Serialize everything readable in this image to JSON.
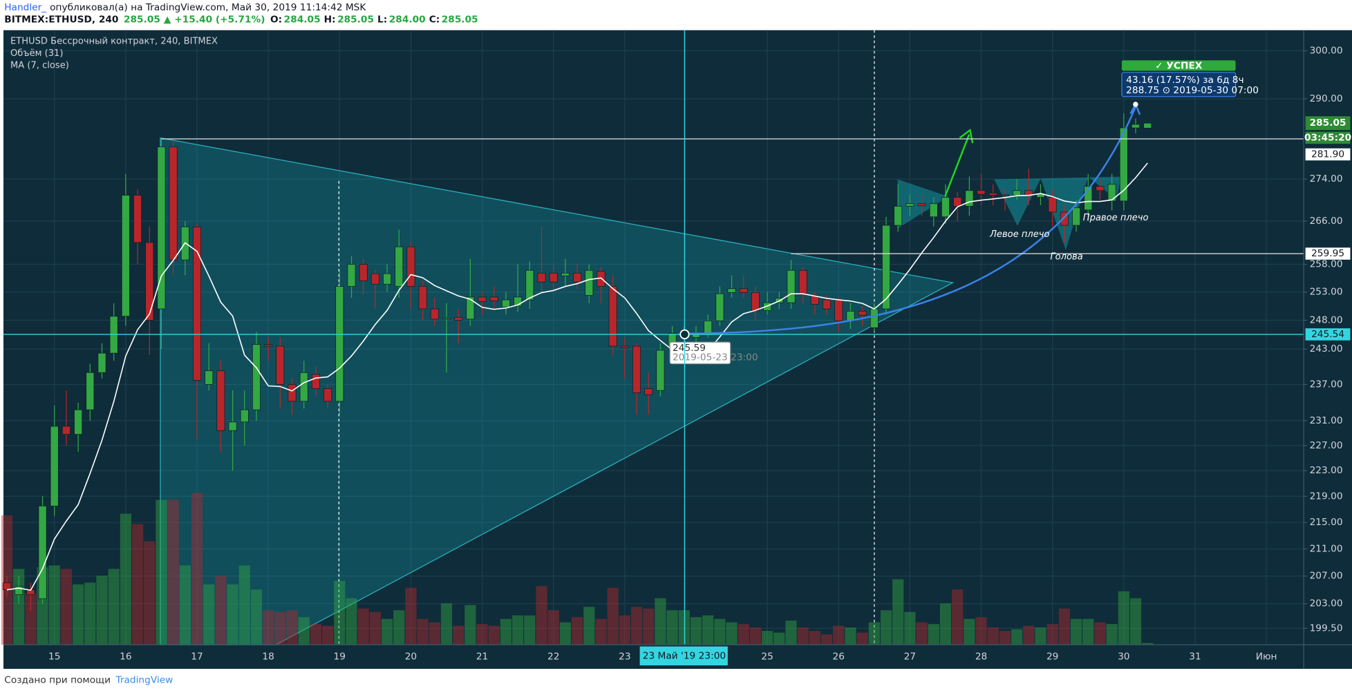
{
  "header": {
    "user": "Handler_",
    "published": "опубликовал(а) на TradingView.com, Май 30, 2019 11:14:42 MSK",
    "symbol": "BITMEX:ETHUSD, 240",
    "last": "285.05",
    "change": "▲ +15.40 (+5.71%)",
    "ohlc": [
      {
        "k": "O:",
        "v": "284.05"
      },
      {
        "k": "H:",
        "v": "285.05"
      },
      {
        "k": "L:",
        "v": "284.00"
      },
      {
        "k": "C:",
        "v": "285.05"
      }
    ]
  },
  "chart_data": {
    "type": "candlestick",
    "legend": [
      "ETHUSD Бессрочный контракт, 240, BITMEX",
      "Объём (31)",
      "MA (7, close)"
    ],
    "ma_period": 7,
    "categories": [
      null,
      null,
      null,
      null,
      "15",
      null,
      null,
      null,
      null,
      null,
      "16",
      null,
      null,
      null,
      null,
      null,
      "17",
      null,
      null,
      null,
      null,
      null,
      "18",
      null,
      null,
      null,
      null,
      null,
      "19",
      null,
      null,
      null,
      null,
      null,
      "20",
      null,
      null,
      null,
      null,
      null,
      "21",
      null,
      null,
      null,
      null,
      null,
      "22",
      null,
      null,
      null,
      null,
      null,
      "23",
      null,
      null,
      null,
      null,
      null,
      null,
      null,
      null,
      null,
      null,
      null,
      "25",
      null,
      null,
      null,
      null,
      null,
      "26",
      null,
      null,
      null,
      null,
      null,
      "27",
      null,
      null,
      null,
      null,
      null,
      "28",
      null,
      null,
      null,
      null,
      null,
      "29",
      null,
      null,
      null,
      null,
      null,
      "30",
      null,
      null,
      null,
      null,
      null,
      "31",
      null,
      null,
      null,
      null,
      null,
      "Июн"
    ],
    "open": [
      206,
      204.3,
      205,
      203.7,
      217.5,
      230.1,
      228.8,
      232.8,
      239,
      242.3,
      248.7,
      270.9,
      262,
      250,
      280.3,
      258.8,
      264.9,
      237,
      239.3,
      229.4,
      230.8,
      232.8,
      243.8,
      243.5,
      237,
      234.2,
      238.7,
      236.3,
      234.2,
      254,
      258,
      256.3,
      254.4,
      254,
      261.2,
      254,
      250,
      248.2,
      248.5,
      248.2,
      252.1,
      252.1,
      250.3,
      250.5,
      251.6,
      256.4,
      256.4,
      255.9,
      256.4,
      252.4,
      256.7,
      254,
      243.5,
      243.5,
      236.3,
      236,
      242.8,
      245,
      245,
      245.7,
      247.9,
      252.9,
      253.6,
      252.9,
      249.7,
      251.1,
      251.1,
      256.9,
      252.4,
      251.6,
      251.6,
      247.9,
      249.6,
      246.7,
      250,
      265.2,
      268.8,
      269.3,
      266.8,
      266.8,
      270.5,
      268.8,
      271.8,
      271.3,
      271,
      270.9,
      271.8,
      270.5,
      270.5,
      267.7,
      265.2,
      268.1,
      272.6,
      269.8,
      269.8,
      284.1,
      284.05,
      null,
      null,
      null,
      null,
      null,
      null,
      null,
      null,
      null,
      null
    ],
    "high": [
      207,
      207,
      206,
      219,
      233.5,
      236,
      234,
      240.5,
      244,
      251,
      275,
      272,
      265,
      281.9,
      282,
      266,
      265.5,
      244,
      241,
      236,
      236,
      246,
      245,
      245,
      238,
      241,
      240,
      237,
      257,
      259.5,
      259,
      257,
      258,
      264.4,
      262,
      255,
      252,
      251,
      250,
      259,
      253,
      254,
      253,
      258,
      258.5,
      265,
      258,
      259,
      258,
      258,
      257.5,
      256,
      245,
      244,
      239,
      244,
      247,
      247,
      247,
      249,
      254,
      256,
      256,
      254,
      253,
      253,
      258.8,
      257.5,
      253,
      252.5,
      252,
      251,
      250.5,
      251,
      266.8,
      273,
      271,
      271,
      270.5,
      273,
      271.5,
      274.5,
      275,
      273,
      272,
      274,
      276,
      273,
      272,
      269,
      270,
      275,
      274,
      275,
      287,
      286,
      285.05,
      null,
      null,
      null,
      null,
      null,
      null,
      null,
      null,
      null,
      null
    ],
    "low": [
      204,
      203,
      202,
      203,
      216,
      227,
      226,
      231,
      238,
      241,
      247,
      258,
      242,
      243,
      256,
      256,
      228,
      236,
      226,
      223,
      227,
      231,
      241,
      233,
      232,
      233,
      235,
      233,
      232,
      252,
      252.5,
      250,
      253,
      252,
      250,
      248,
      247,
      239,
      244,
      247,
      249,
      250,
      249,
      249.5,
      250,
      253,
      253,
      254,
      253.5,
      251,
      251,
      242,
      238,
      232,
      232,
      235,
      241,
      244,
      244,
      245,
      247,
      252,
      252,
      248,
      249,
      250,
      250,
      251,
      249,
      249,
      246,
      246.5,
      247,
      246,
      249,
      264,
      267,
      267,
      265,
      265.5,
      266,
      267,
      269,
      269,
      268,
      270,
      269,
      269,
      265,
      262,
      264,
      266,
      270,
      268,
      268,
      283,
      284,
      null,
      null,
      null,
      null,
      null,
      null,
      null,
      null,
      null,
      null
    ],
    "close": [
      205,
      205.5,
      204.3,
      217.5,
      230.1,
      228.8,
      232.8,
      239,
      242.3,
      248.7,
      270.9,
      262,
      248,
      280.3,
      258.8,
      264.9,
      237.7,
      239.3,
      229.4,
      230.8,
      232.8,
      243.8,
      243.5,
      237,
      234.2,
      239,
      236.3,
      234.2,
      254,
      258,
      255,
      254.4,
      256.3,
      261.2,
      254,
      250,
      248.2,
      248.4,
      248,
      252.1,
      251.3,
      251.4,
      251.6,
      252.1,
      256.9,
      254.8,
      254.8,
      256.4,
      254.8,
      256.9,
      254,
      243.5,
      243.2,
      235.6,
      235.3,
      242.8,
      245.7,
      245.59,
      245.7,
      247.9,
      252.7,
      253.6,
      252.9,
      249.7,
      251.1,
      251.9,
      256.9,
      252.7,
      250.8,
      250,
      247.9,
      249.6,
      248.9,
      250,
      265.2,
      268.8,
      269.3,
      268.9,
      269.3,
      270.5,
      268.8,
      271.8,
      271.1,
      270.9,
      270.8,
      271.8,
      270.9,
      271.3,
      267.7,
      265.2,
      268.5,
      272.6,
      271.8,
      273,
      284.1,
      284.8,
      285.05,
      null,
      null,
      null,
      null,
      null,
      null,
      null,
      null,
      null,
      null
    ],
    "volume": [
      150,
      88,
      60,
      90,
      92,
      88,
      70,
      72,
      80,
      88,
      152,
      140,
      120,
      168,
      168,
      92,
      176,
      70,
      80,
      70,
      92,
      64,
      40,
      38,
      40,
      32,
      24,
      22,
      74,
      54,
      42,
      38,
      30,
      40,
      66,
      30,
      26,
      48,
      22,
      46,
      24,
      22,
      30,
      34,
      34,
      68,
      40,
      26,
      32,
      44,
      30,
      66,
      34,
      44,
      42,
      54,
      40,
      40,
      32,
      34,
      30,
      26,
      24,
      20,
      16,
      14,
      28,
      20,
      16,
      12,
      22,
      20,
      14,
      26,
      40,
      76,
      38,
      26,
      24,
      48,
      64,
      30,
      32,
      20,
      16,
      18,
      22,
      20,
      24,
      42,
      30,
      30,
      26,
      24,
      62,
      54,
      2,
      null,
      null,
      null,
      null,
      null,
      null,
      null,
      null,
      null,
      null
    ],
    "up_color": "#33a843",
    "down_color": "#b8262b",
    "ma_color": "#ffffff",
    "log_scale": true,
    "grid": true,
    "ylim": [
      197.2,
      304.4
    ],
    "yticks": [
      {
        "value": 300,
        "label": "300.00"
      },
      {
        "value": 290,
        "label": "290.00"
      },
      {
        "value": 274,
        "label": "274.00"
      },
      {
        "value": 266,
        "label": "266.00"
      },
      {
        "value": 258,
        "label": "258.00"
      },
      {
        "value": 253,
        "label": "253.00"
      },
      {
        "value": 248,
        "label": "248.00"
      },
      {
        "value": 243,
        "label": "243.00"
      },
      {
        "value": 237,
        "label": "237.00"
      },
      {
        "value": 231,
        "label": "231.00"
      },
      {
        "value": 227,
        "label": "227.00"
      },
      {
        "value": 223,
        "label": "223.00"
      },
      {
        "value": 219,
        "label": "219.00"
      },
      {
        "value": 215,
        "label": "215.00"
      },
      {
        "value": 211,
        "label": "211.00"
      },
      {
        "value": 207,
        "label": "207.00"
      },
      {
        "value": 203,
        "label": "203.00"
      },
      {
        "value": 199.5,
        "label": "199.50"
      }
    ],
    "last_price": {
      "value": 285.05,
      "label": "285.05"
    },
    "countdown": "03:45:20",
    "levels": [
      {
        "value": 281.9,
        "label": "281.90"
      },
      {
        "value": 259.95,
        "label": "259.95"
      }
    ],
    "crosshair": {
      "price": {
        "value": 245.54,
        "label": "245.54"
      },
      "date": "23 Май '19",
      "time": "23:00"
    },
    "annotations": {
      "left_shoulder": "Левое плечо",
      "head": "Голова",
      "right_shoulder": "Правое плечо",
      "success": "✓ УСПЕХ",
      "measure": "43.16 (17.57%) за 6д 8ч",
      "measure_sub": "288.75 ⊙ 2019-05-30 07:00",
      "cursor_price": "245.59",
      "cursor_time": "2019-05-23 23:00"
    }
  },
  "footer": {
    "made_with": "Создано при помощи",
    "brand": "TradingView"
  }
}
